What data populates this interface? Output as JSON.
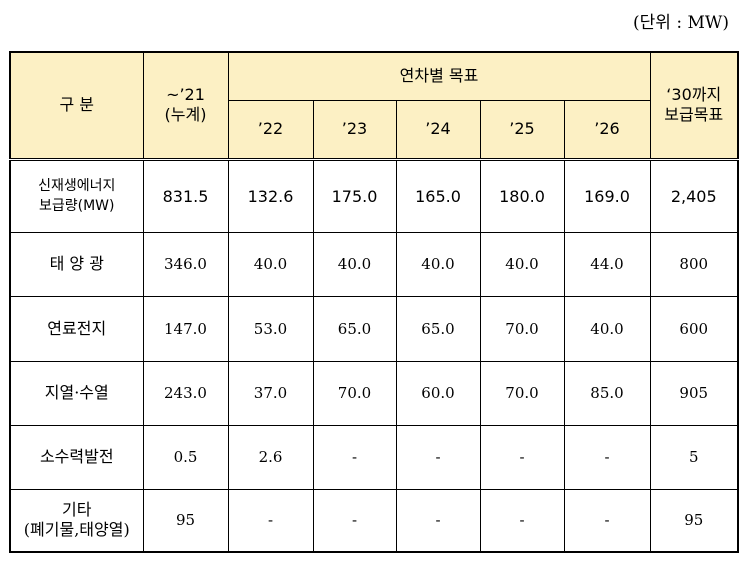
{
  "unit_label": "(단위 : MW)",
  "header": {
    "category": "구 분",
    "cumulative_line1": "~’21",
    "cumulative_line2": "(누계)",
    "annual_target": "연차별 목표",
    "years": [
      "’22",
      "’23",
      "’24",
      "’25",
      "’26"
    ],
    "target_line1": "‘30까지",
    "target_line2": "보급목표"
  },
  "rows": [
    {
      "label1": "신재생에너지",
      "label2": "보급량(MW)",
      "cumulative": "831.5",
      "years": [
        "132.6",
        "175.0",
        "165.0",
        "180.0",
        "169.0"
      ],
      "target": "2,405"
    },
    {
      "label1": "태 양 광",
      "label2": "",
      "cumulative": "346.0",
      "years": [
        "40.0",
        "40.0",
        "40.0",
        "40.0",
        "44.0"
      ],
      "target": "800"
    },
    {
      "label1": "연료전지",
      "label2": "",
      "cumulative": "147.0",
      "years": [
        "53.0",
        "65.0",
        "65.0",
        "70.0",
        "40.0"
      ],
      "target": "600"
    },
    {
      "label1": "지열·수열",
      "label2": "",
      "cumulative": "243.0",
      "years": [
        "37.0",
        "70.0",
        "60.0",
        "70.0",
        "85.0"
      ],
      "target": "905"
    },
    {
      "label1": "소수력발전",
      "label2": "",
      "cumulative": "0.5",
      "years": [
        "2.6",
        "-",
        "-",
        "-",
        "-"
      ],
      "target": "5"
    },
    {
      "label1": "기타",
      "label2": "(폐기물,태양열)",
      "cumulative": "95",
      "years": [
        "-",
        "-",
        "-",
        "-",
        "-"
      ],
      "target": "95"
    }
  ]
}
